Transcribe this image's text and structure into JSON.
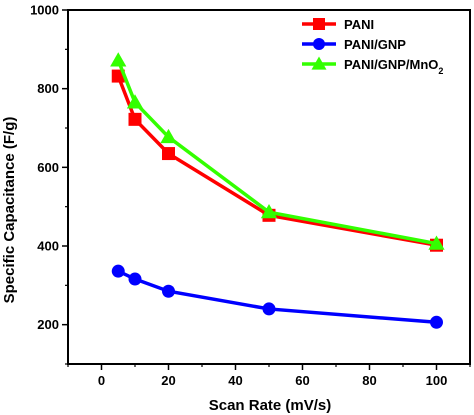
{
  "chart_data": {
    "type": "line",
    "xlabel": "Scan Rate (mV/s)",
    "ylabel": "Specific Capacitance (F/g)",
    "xlim": [
      -10,
      110
    ],
    "ylim": [
      100,
      1000
    ],
    "xticks": [
      0,
      20,
      40,
      60,
      80,
      100
    ],
    "yticks": [
      200,
      400,
      600,
      800,
      1000
    ],
    "grid": false,
    "legend_position": "top-right",
    "x": [
      5,
      10,
      20,
      50,
      100
    ],
    "series": [
      {
        "name": "PANI",
        "color": "#ff0000",
        "marker": "square",
        "values": [
          832,
          722,
          635,
          478,
          402
        ]
      },
      {
        "name": "PANI/GNP",
        "color": "#0000ff",
        "marker": "circle",
        "values": [
          336,
          316,
          285,
          240,
          206
        ]
      },
      {
        "name": "PANI/GNP/MnO2",
        "color": "#33ff00",
        "marker": "triangle",
        "values": [
          872,
          765,
          677,
          486,
          406
        ]
      }
    ]
  }
}
